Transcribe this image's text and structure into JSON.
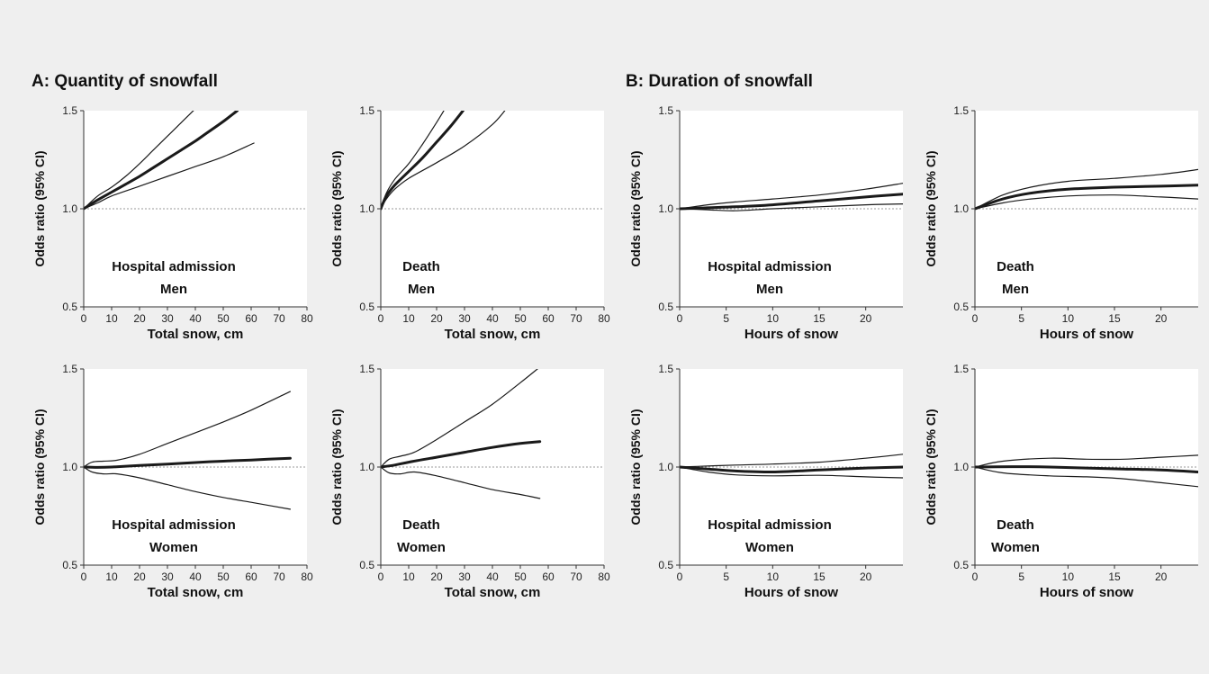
{
  "figure": {
    "panel_a_title": "A: Quantity of snowfall",
    "panel_b_title": "B: Duration of snowfall"
  },
  "colors": {
    "background": "#efefef",
    "plot_bg": "#ffffff",
    "line": "#1a1a1a",
    "reference": "#9a9a9a"
  },
  "chart_data": [
    {
      "type": "line",
      "annotation": [
        "Hospital admission",
        "Men"
      ],
      "xlabel": "Total snow, cm",
      "ylabel": "Odds ratio (95% CI)",
      "xlim": [
        0,
        80
      ],
      "ylim": [
        0.5,
        1.5
      ],
      "xticks": [
        0,
        10,
        20,
        30,
        40,
        50,
        60,
        70,
        80
      ],
      "yticks": [
        "0.5",
        "1.0",
        "1.5"
      ],
      "reference_y": 1.0,
      "series": [
        {
          "role": "estimate",
          "x": [
            0,
            5,
            10,
            15,
            20,
            25,
            30,
            35,
            40,
            45,
            50,
            55
          ],
          "y": [
            1.0,
            1.045,
            1.085,
            1.125,
            1.165,
            1.21,
            1.255,
            1.3,
            1.345,
            1.395,
            1.445,
            1.5
          ]
        },
        {
          "role": "upper",
          "x": [
            0,
            5,
            10,
            15,
            20,
            25,
            30,
            35,
            40
          ],
          "y": [
            1.0,
            1.065,
            1.11,
            1.165,
            1.23,
            1.3,
            1.37,
            1.44,
            1.51
          ]
        },
        {
          "role": "lower",
          "x": [
            0,
            5,
            10,
            20,
            30,
            40,
            50,
            61
          ],
          "y": [
            1.0,
            1.03,
            1.065,
            1.115,
            1.165,
            1.215,
            1.265,
            1.335
          ]
        }
      ]
    },
    {
      "type": "line",
      "annotation": [
        "Death",
        "Men"
      ],
      "xlabel": "Total snow, cm",
      "ylabel": "Odds ratio (95% CI)",
      "xlim": [
        0,
        80
      ],
      "ylim": [
        0.5,
        1.5
      ],
      "xticks": [
        0,
        10,
        20,
        30,
        40,
        50,
        60,
        70,
        80
      ],
      "yticks": [
        "0.5",
        "1.0",
        "1.5"
      ],
      "reference_y": 1.0,
      "series": [
        {
          "role": "estimate",
          "x": [
            0,
            2,
            5,
            10,
            15,
            20,
            25,
            30
          ],
          "y": [
            1.0,
            1.065,
            1.12,
            1.19,
            1.26,
            1.34,
            1.42,
            1.51
          ]
        },
        {
          "role": "upper",
          "x": [
            0,
            2,
            5,
            10,
            15,
            20,
            23
          ],
          "y": [
            1.0,
            1.08,
            1.15,
            1.23,
            1.33,
            1.44,
            1.51
          ]
        },
        {
          "role": "lower",
          "x": [
            0,
            2,
            5,
            10,
            20,
            30,
            40,
            45
          ],
          "y": [
            1.0,
            1.05,
            1.1,
            1.155,
            1.235,
            1.32,
            1.43,
            1.51
          ]
        }
      ]
    },
    {
      "type": "line",
      "annotation": [
        "Hospital admission",
        "Men"
      ],
      "xlabel": "Hours of snow",
      "ylabel": "Odds ratio (95% CI)",
      "xlim": [
        0,
        24
      ],
      "ylim": [
        0.5,
        1.5
      ],
      "xticks": [
        0,
        5,
        10,
        15,
        20
      ],
      "yticks": [
        "0.5",
        "1.0",
        "1.5"
      ],
      "reference_y": 1.0,
      "series": [
        {
          "role": "estimate",
          "x": [
            0,
            3,
            6,
            10,
            15,
            20,
            24
          ],
          "y": [
            1.0,
            1.005,
            1.01,
            1.02,
            1.04,
            1.06,
            1.075
          ]
        },
        {
          "role": "upper",
          "x": [
            0,
            3,
            6,
            10,
            15,
            20,
            24
          ],
          "y": [
            1.0,
            1.02,
            1.035,
            1.05,
            1.07,
            1.1,
            1.13
          ]
        },
        {
          "role": "lower",
          "x": [
            0,
            3,
            6,
            10,
            15,
            20,
            24
          ],
          "y": [
            1.0,
            0.995,
            0.99,
            1.0,
            1.01,
            1.02,
            1.025
          ]
        }
      ]
    },
    {
      "type": "line",
      "annotation": [
        "Death",
        "Men"
      ],
      "xlabel": "Hours of snow",
      "ylabel": "Odds ratio (95% CI)",
      "xlim": [
        0,
        24
      ],
      "ylim": [
        0.5,
        1.5
      ],
      "xticks": [
        0,
        5,
        10,
        15,
        20
      ],
      "yticks": [
        "0.5",
        "1.0",
        "1.5"
      ],
      "reference_y": 1.0,
      "series": [
        {
          "role": "estimate",
          "x": [
            0,
            3,
            6,
            10,
            15,
            20,
            24
          ],
          "y": [
            1.0,
            1.05,
            1.08,
            1.1,
            1.11,
            1.115,
            1.12
          ]
        },
        {
          "role": "upper",
          "x": [
            0,
            3,
            6,
            10,
            15,
            20,
            24
          ],
          "y": [
            1.0,
            1.07,
            1.11,
            1.14,
            1.155,
            1.175,
            1.2
          ]
        },
        {
          "role": "lower",
          "x": [
            0,
            3,
            6,
            10,
            15,
            20,
            24
          ],
          "y": [
            1.0,
            1.03,
            1.05,
            1.065,
            1.07,
            1.06,
            1.05
          ]
        }
      ]
    },
    {
      "type": "line",
      "annotation": [
        "Hospital admission",
        "Women"
      ],
      "xlabel": "Total snow, cm",
      "ylabel": "Odds ratio (95% CI)",
      "xlim": [
        0,
        80
      ],
      "ylim": [
        0.5,
        1.5
      ],
      "xticks": [
        0,
        10,
        20,
        30,
        40,
        50,
        60,
        70,
        80
      ],
      "yticks": [
        "0.5",
        "1.0",
        "1.5"
      ],
      "reference_y": 1.0,
      "series": [
        {
          "role": "estimate",
          "x": [
            0,
            5,
            10,
            20,
            30,
            40,
            50,
            60,
            74
          ],
          "y": [
            1.0,
            0.998,
            1.0,
            1.008,
            1.015,
            1.023,
            1.03,
            1.036,
            1.045
          ]
        },
        {
          "role": "upper",
          "x": [
            0,
            3,
            7,
            12,
            20,
            30,
            40,
            50,
            60,
            74
          ],
          "y": [
            1.0,
            1.025,
            1.03,
            1.035,
            1.065,
            1.12,
            1.175,
            1.23,
            1.29,
            1.385
          ]
        },
        {
          "role": "lower",
          "x": [
            0,
            3,
            7,
            12,
            20,
            30,
            40,
            50,
            60,
            74
          ],
          "y": [
            1.0,
            0.975,
            0.965,
            0.965,
            0.945,
            0.91,
            0.875,
            0.845,
            0.82,
            0.785
          ]
        }
      ]
    },
    {
      "type": "line",
      "annotation": [
        "Death",
        "Women"
      ],
      "xlabel": "Total snow, cm",
      "ylabel": "Odds ratio (95% CI)",
      "xlim": [
        0,
        80
      ],
      "ylim": [
        0.5,
        1.5
      ],
      "xticks": [
        0,
        10,
        20,
        30,
        40,
        50,
        60,
        70,
        80
      ],
      "yticks": [
        "0.5",
        "1.0",
        "1.5"
      ],
      "reference_y": 1.0,
      "series": [
        {
          "role": "estimate",
          "x": [
            0,
            5,
            10,
            20,
            30,
            40,
            50,
            57
          ],
          "y": [
            1.0,
            1.01,
            1.025,
            1.05,
            1.075,
            1.1,
            1.12,
            1.13
          ]
        },
        {
          "role": "upper",
          "x": [
            0,
            3,
            7,
            12,
            20,
            30,
            40,
            50,
            57
          ],
          "y": [
            1.0,
            1.04,
            1.055,
            1.075,
            1.14,
            1.23,
            1.32,
            1.43,
            1.51
          ]
        },
        {
          "role": "lower",
          "x": [
            0,
            3,
            7,
            12,
            20,
            30,
            40,
            50,
            57
          ],
          "y": [
            1.0,
            0.97,
            0.965,
            0.975,
            0.955,
            0.92,
            0.885,
            0.86,
            0.84
          ]
        }
      ]
    },
    {
      "type": "line",
      "annotation": [
        "Hospital admission",
        "Women"
      ],
      "xlabel": "Hours of snow",
      "ylabel": "Odds ratio (95% CI)",
      "xlim": [
        0,
        24
      ],
      "ylim": [
        0.5,
        1.5
      ],
      "xticks": [
        0,
        5,
        10,
        15,
        20
      ],
      "yticks": [
        "0.5",
        "1.0",
        "1.5"
      ],
      "reference_y": 1.0,
      "series": [
        {
          "role": "estimate",
          "x": [
            0,
            3,
            6,
            10,
            15,
            20,
            24
          ],
          "y": [
            1.0,
            0.99,
            0.98,
            0.975,
            0.985,
            0.995,
            1.0
          ]
        },
        {
          "role": "upper",
          "x": [
            0,
            3,
            6,
            10,
            15,
            20,
            24
          ],
          "y": [
            1.0,
            1.005,
            1.01,
            1.015,
            1.025,
            1.045,
            1.065
          ]
        },
        {
          "role": "lower",
          "x": [
            0,
            3,
            6,
            10,
            15,
            20,
            24
          ],
          "y": [
            1.0,
            0.975,
            0.96,
            0.955,
            0.958,
            0.95,
            0.945
          ]
        }
      ]
    },
    {
      "type": "line",
      "annotation": [
        "Death",
        "Women"
      ],
      "xlabel": "Hours of snow",
      "ylabel": "Odds ratio (95% CI)",
      "xlim": [
        0,
        24
      ],
      "ylim": [
        0.5,
        1.5
      ],
      "xticks": [
        0,
        5,
        10,
        15,
        20
      ],
      "yticks": [
        "0.5",
        "1.0",
        "1.5"
      ],
      "reference_y": 1.0,
      "series": [
        {
          "role": "estimate",
          "x": [
            0,
            4,
            8,
            12,
            16,
            20,
            24
          ],
          "y": [
            1.0,
            1.002,
            1.0,
            0.995,
            0.99,
            0.985,
            0.975
          ]
        },
        {
          "role": "upper",
          "x": [
            0,
            3,
            8,
            12,
            16,
            20,
            24
          ],
          "y": [
            1.0,
            1.03,
            1.045,
            1.04,
            1.04,
            1.05,
            1.06
          ]
        },
        {
          "role": "lower",
          "x": [
            0,
            3,
            8,
            12,
            16,
            20,
            24
          ],
          "y": [
            1.0,
            0.97,
            0.955,
            0.95,
            0.94,
            0.92,
            0.9
          ]
        }
      ]
    }
  ]
}
